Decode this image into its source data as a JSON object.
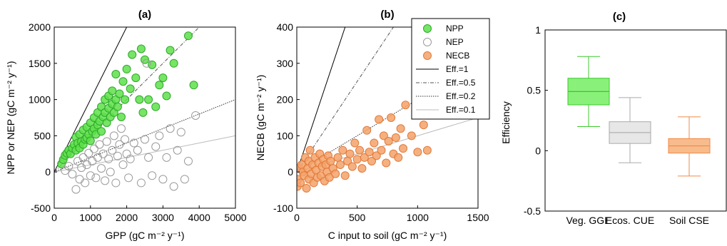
{
  "chart_data": [
    {
      "id": "a",
      "panel_label": "(a)",
      "type": "scatter",
      "xlabel": "GPP (gC m⁻² y⁻¹)",
      "ylabel": "NPP or NEP (gC m⁻² y⁻¹)",
      "xlim": [
        0,
        5000
      ],
      "ylim": [
        -500,
        2000
      ],
      "xticks": [
        0,
        1000,
        2000,
        3000,
        4000,
        5000
      ],
      "yticks": [
        -500,
        0,
        500,
        1000,
        1500,
        2000
      ],
      "efficiency_lines": [
        1,
        0.5,
        0.2,
        0.1
      ],
      "series": [
        {
          "name": "NPP",
          "color": "#5ee04a",
          "marker": "filled-circle",
          "points": [
            [
              200,
              110
            ],
            [
              250,
              170
            ],
            [
              300,
              230
            ],
            [
              350,
              260
            ],
            [
              400,
              300
            ],
            [
              450,
              250
            ],
            [
              500,
              330
            ],
            [
              550,
              380
            ],
            [
              600,
              300
            ],
            [
              600,
              480
            ],
            [
              650,
              400
            ],
            [
              700,
              330
            ],
            [
              700,
              520
            ],
            [
              750,
              420
            ],
            [
              800,
              380
            ],
            [
              800,
              580
            ],
            [
              850,
              450
            ],
            [
              900,
              470
            ],
            [
              900,
              620
            ],
            [
              950,
              520
            ],
            [
              1000,
              430
            ],
            [
              1000,
              680
            ],
            [
              1050,
              560
            ],
            [
              1100,
              600
            ],
            [
              1100,
              750
            ],
            [
              1150,
              520
            ],
            [
              1200,
              650
            ],
            [
              1200,
              820
            ],
            [
              1250,
              700
            ],
            [
              1300,
              560
            ],
            [
              1300,
              900
            ],
            [
              1350,
              760
            ],
            [
              1400,
              820
            ],
            [
              1400,
              1000
            ],
            [
              1450,
              680
            ],
            [
              1500,
              880
            ],
            [
              1500,
              1050
            ],
            [
              1550,
              760
            ],
            [
              1600,
              940
            ],
            [
              1600,
              1120
            ],
            [
              1650,
              820
            ],
            [
              1700,
              1000
            ],
            [
              1700,
              1350
            ],
            [
              1750,
              900
            ],
            [
              1800,
              1080
            ],
            [
              1850,
              760
            ],
            [
              1900,
              1250
            ],
            [
              1950,
              1000
            ],
            [
              2000,
              1420
            ],
            [
              2100,
              1150
            ],
            [
              2150,
              1620
            ],
            [
              2250,
              1300
            ],
            [
              2350,
              1000
            ],
            [
              2400,
              1700
            ],
            [
              2450,
              820
            ],
            [
              2500,
              1550
            ],
            [
              2600,
              1000
            ],
            [
              2700,
              1480
            ],
            [
              2800,
              900
            ],
            [
              2900,
              1200
            ],
            [
              3000,
              1300
            ],
            [
              3100,
              1050
            ],
            [
              3200,
              1680
            ],
            [
              3300,
              1500
            ],
            [
              3700,
              1880
            ],
            [
              3850,
              1200
            ]
          ]
        },
        {
          "name": "NEP",
          "color": "#999999",
          "marker": "open-circle",
          "points": [
            [
              300,
              20
            ],
            [
              400,
              80
            ],
            [
              500,
              -30
            ],
            [
              600,
              -240
            ],
            [
              650,
              150
            ],
            [
              700,
              -100
            ],
            [
              750,
              60
            ],
            [
              800,
              200
            ],
            [
              850,
              -150
            ],
            [
              900,
              100
            ],
            [
              950,
              260
            ],
            [
              1000,
              -50
            ],
            [
              1050,
              150
            ],
            [
              1100,
              320
            ],
            [
              1150,
              -80
            ],
            [
              1200,
              200
            ],
            [
              1250,
              380
            ],
            [
              1300,
              50
            ],
            [
              1350,
              250
            ],
            [
              1400,
              -120
            ],
            [
              1450,
              420
            ],
            [
              1500,
              180
            ],
            [
              1550,
              0
            ],
            [
              1600,
              300
            ],
            [
              1650,
              500
            ],
            [
              1700,
              -150
            ],
            [
              1750,
              220
            ],
            [
              1800,
              380
            ],
            [
              1850,
              600
            ],
            [
              1900,
              100
            ],
            [
              1950,
              450
            ],
            [
              2000,
              250
            ],
            [
              2050,
              -80
            ],
            [
              2100,
              180
            ],
            [
              2200,
              400
            ],
            [
              2300,
              300
            ],
            [
              2400,
              -150
            ],
            [
              2500,
              450
            ],
            [
              2550,
              1500
            ],
            [
              2600,
              200
            ],
            [
              2700,
              -50
            ],
            [
              2800,
              350
            ],
            [
              2900,
              500
            ],
            [
              3000,
              -100
            ],
            [
              3100,
              200
            ],
            [
              3200,
              600
            ],
            [
              3300,
              -200
            ],
            [
              3400,
              300
            ],
            [
              3500,
              550
            ],
            [
              3600,
              -100
            ],
            [
              3700,
              150
            ],
            [
              3900,
              780
            ]
          ]
        }
      ]
    },
    {
      "id": "b",
      "panel_label": "(b)",
      "type": "scatter",
      "xlabel": "C input to soil (gC m⁻² y⁻¹)",
      "ylabel": "NECB (gC m⁻² y⁻¹)",
      "xlim": [
        0,
        1500
      ],
      "ylim": [
        -100,
        400
      ],
      "xticks": [
        0,
        500,
        1000,
        1500
      ],
      "yticks": [
        -100,
        0,
        100,
        200,
        300,
        400
      ],
      "efficiency_lines": [
        1,
        0.5,
        0.2,
        0.1
      ],
      "series": [
        {
          "name": "NECB",
          "color": "#f5a26a",
          "marker": "filled-circle",
          "points": [
            [
              5,
              -40
            ],
            [
              10,
              -20
            ],
            [
              20,
              10
            ],
            [
              30,
              -30
            ],
            [
              40,
              20
            ],
            [
              50,
              0
            ],
            [
              60,
              -10
            ],
            [
              70,
              40
            ],
            [
              80,
              -45
            ],
            [
              90,
              10
            ],
            [
              100,
              30
            ],
            [
              100,
              -20
            ],
            [
              110,
              60
            ],
            [
              120,
              -5
            ],
            [
              130,
              20
            ],
            [
              140,
              -30
            ],
            [
              150,
              40
            ],
            [
              160,
              5
            ],
            [
              170,
              -15
            ],
            [
              180,
              25
            ],
            [
              190,
              50
            ],
            [
              200,
              -10
            ],
            [
              210,
              15
            ],
            [
              220,
              35
            ],
            [
              230,
              -25
            ],
            [
              240,
              20
            ],
            [
              250,
              0
            ],
            [
              260,
              45
            ],
            [
              270,
              -15
            ],
            [
              280,
              30
            ],
            [
              300,
              10
            ],
            [
              320,
              -5
            ],
            [
              340,
              40
            ],
            [
              360,
              20
            ],
            [
              380,
              60
            ],
            [
              400,
              -10
            ],
            [
              420,
              30
            ],
            [
              440,
              50
            ],
            [
              460,
              15
            ],
            [
              480,
              80
            ],
            [
              500,
              35
            ],
            [
              520,
              60
            ],
            [
              540,
              10
            ],
            [
              560,
              40
            ],
            [
              580,
              115
            ],
            [
              600,
              55
            ],
            [
              620,
              30
            ],
            [
              640,
              80
            ],
            [
              660,
              45
            ],
            [
              680,
              145
            ],
            [
              700,
              60
            ],
            [
              720,
              100
            ],
            [
              740,
              25
            ],
            [
              760,
              85
            ],
            [
              780,
              150
            ],
            [
              800,
              50
            ],
            [
              820,
              95
            ],
            [
              840,
              40
            ],
            [
              860,
              120
            ],
            [
              880,
              65
            ],
            [
              900,
              185
            ],
            [
              950,
              100
            ],
            [
              1000,
              55
            ],
            [
              1050,
              130
            ],
            [
              1080,
              60
            ]
          ]
        }
      ],
      "legend": {
        "placement": "top-right",
        "entries": [
          {
            "label": "NPP",
            "kind": "marker",
            "color": "#5ee04a",
            "fill": true
          },
          {
            "label": "NEP",
            "kind": "marker",
            "color": "#999999",
            "fill": false
          },
          {
            "label": "NECB",
            "kind": "marker",
            "color": "#f5a26a",
            "fill": true
          },
          {
            "label": "Eff.=1",
            "kind": "line",
            "color": "#000000",
            "dash": "solid"
          },
          {
            "label": "Eff.=0.5",
            "kind": "line",
            "color": "#555555",
            "dash": "dashdot"
          },
          {
            "label": "Eff.=0.2",
            "kind": "line",
            "color": "#333333",
            "dash": "dotted"
          },
          {
            "label": "Eff.=0.1",
            "kind": "line",
            "color": "#bbbbbb",
            "dash": "solid"
          }
        ]
      }
    },
    {
      "id": "c",
      "panel_label": "(c)",
      "type": "box",
      "ylabel": "Efficiency",
      "ylim": [
        -0.5,
        1
      ],
      "yticks": [
        -0.5,
        0,
        0.5,
        1
      ],
      "categories": [
        "Veg. GGE",
        "Ecos. CUE",
        "Soil CSE"
      ],
      "boxes": [
        {
          "category": "Veg. GGE",
          "color": "#5ee04a",
          "whisker_low": 0.2,
          "q1": 0.38,
          "median": 0.49,
          "q3": 0.6,
          "whisker_high": 0.78
        },
        {
          "category": "Ecos. CUE",
          "color": "#bbbbbb",
          "whisker_low": -0.1,
          "q1": 0.06,
          "median": 0.15,
          "q3": 0.24,
          "whisker_high": 0.44
        },
        {
          "category": "Soil CSE",
          "color": "#f5a26a",
          "whisker_low": -0.21,
          "q1": -0.02,
          "median": 0.04,
          "q3": 0.1,
          "whisker_high": 0.28
        }
      ]
    }
  ]
}
